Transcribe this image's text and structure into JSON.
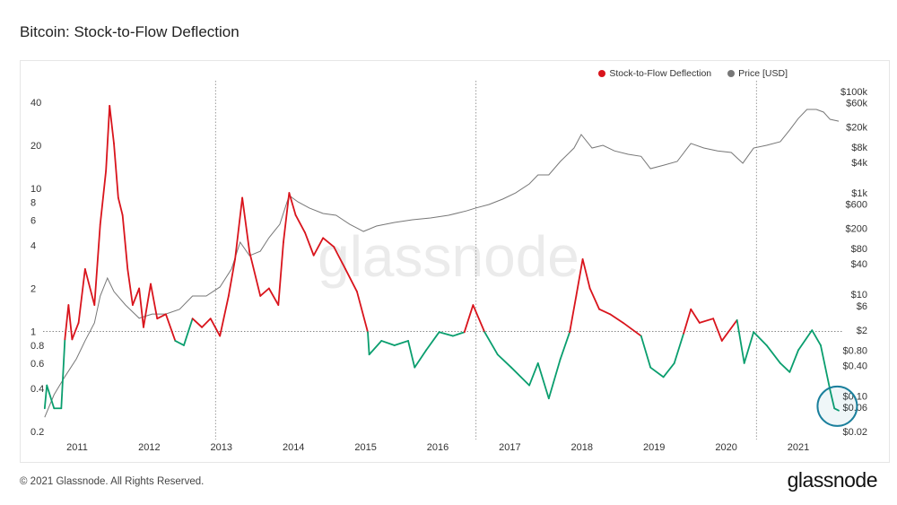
{
  "title": "Bitcoin: Stock-to-Flow Deflection",
  "footer": "© 2021 Glassnode. All Rights Reserved.",
  "brand": "glassnode",
  "watermark": "glassnode",
  "colors": {
    "above_one": "#d9141c",
    "below_one": "#0a9e6e",
    "price": "#777777",
    "annotation": "#1a7f9c"
  },
  "chart_data": {
    "type": "line",
    "title": "Bitcoin: Stock-to-Flow Deflection",
    "legend": {
      "position": "top-right",
      "entries": [
        {
          "name": "Stock-to-Flow Deflection",
          "color": "#d9141c"
        },
        {
          "name": "Price [USD]",
          "color": "#777777"
        }
      ]
    },
    "x_ticks": [
      "2011",
      "2012",
      "2013",
      "2014",
      "2015",
      "2016",
      "2017",
      "2018",
      "2019",
      "2020",
      "2021"
    ],
    "xlim": [
      2010.55,
      2021.6
    ],
    "y_left": {
      "scale": "log",
      "ylim": [
        0.2,
        50
      ],
      "ticks": [
        "40",
        "20",
        "10",
        "8",
        "6",
        "4",
        "2",
        "1",
        "0.8",
        "0.6",
        "0.4",
        "0.2"
      ]
    },
    "y_right": {
      "scale": "log",
      "ylim": [
        0.02,
        100000
      ],
      "ticks": [
        "$100k",
        "$60k",
        "$20k",
        "$8k",
        "$4k",
        "$1k",
        "$600",
        "$200",
        "$80",
        "$40",
        "$10",
        "$6",
        "$2",
        "$0.80",
        "$0.40",
        "$0.10",
        "$0.06",
        "$0.02"
      ]
    },
    "reference_line_y": 1,
    "halving_lines_x": [
      2012.92,
      2016.53,
      2020.42
    ],
    "annotation": {
      "type": "circle",
      "x": 2021.54,
      "y": 0.3
    },
    "grid": false,
    "series": [
      {
        "name": "Stock-to-Flow Deflection",
        "axis": "left",
        "x": [
          2010.55,
          2010.58,
          2010.68,
          2010.78,
          2010.83,
          2010.88,
          2010.93,
          2011.02,
          2011.11,
          2011.24,
          2011.32,
          2011.4,
          2011.45,
          2011.51,
          2011.57,
          2011.63,
          2011.7,
          2011.77,
          2011.86,
          2011.92,
          2012.02,
          2012.11,
          2012.23,
          2012.36,
          2012.48,
          2012.6,
          2012.73,
          2012.85,
          2012.98,
          2013.1,
          2013.19,
          2013.29,
          2013.39,
          2013.54,
          2013.66,
          2013.79,
          2013.86,
          2013.94,
          2014.03,
          2014.16,
          2014.28,
          2014.41,
          2014.56,
          2014.72,
          2014.88,
          2015.03,
          2015.05,
          2015.22,
          2015.4,
          2015.59,
          2015.68,
          2015.84,
          2016.02,
          2016.21,
          2016.37,
          2016.49,
          2016.65,
          2016.83,
          2017.02,
          2017.27,
          2017.39,
          2017.54,
          2017.7,
          2017.83,
          2017.92,
          2018.01,
          2018.11,
          2018.24,
          2018.39,
          2018.57,
          2018.82,
          2018.95,
          2019.13,
          2019.28,
          2019.41,
          2019.51,
          2019.63,
          2019.82,
          2019.94,
          2020.15,
          2020.25,
          2020.38,
          2020.56,
          2020.75,
          2020.88,
          2021.0,
          2021.19,
          2021.31,
          2021.44,
          2021.5,
          2021.56
        ],
        "y": [
          0.29,
          0.42,
          0.29,
          0.29,
          0.88,
          1.53,
          0.88,
          1.15,
          2.73,
          1.53,
          5.6,
          13.3,
          37.8,
          20.6,
          8.6,
          6.5,
          2.73,
          1.53,
          2.0,
          1.07,
          2.15,
          1.23,
          1.32,
          0.86,
          0.8,
          1.23,
          1.07,
          1.23,
          0.93,
          1.77,
          3.2,
          8.6,
          3.6,
          1.77,
          2.0,
          1.53,
          4.2,
          9.3,
          6.5,
          4.9,
          3.4,
          4.5,
          3.9,
          2.73,
          1.9,
          0.99,
          0.69,
          0.86,
          0.8,
          0.86,
          0.56,
          0.74,
          0.99,
          0.93,
          0.99,
          1.53,
          0.99,
          0.69,
          0.56,
          0.42,
          0.6,
          0.34,
          0.64,
          0.99,
          1.77,
          3.2,
          2.0,
          1.43,
          1.32,
          1.15,
          0.93,
          0.56,
          0.48,
          0.6,
          0.97,
          1.43,
          1.15,
          1.23,
          0.86,
          1.2,
          0.6,
          0.99,
          0.8,
          0.6,
          0.52,
          0.74,
          1.02,
          0.8,
          0.39,
          0.29,
          0.28
        ]
      },
      {
        "name": "Price [USD]",
        "axis": "right",
        "x": [
          2010.55,
          2010.68,
          2010.83,
          2010.99,
          2011.11,
          2011.24,
          2011.32,
          2011.42,
          2011.51,
          2011.67,
          2011.86,
          2012.04,
          2012.23,
          2012.42,
          2012.6,
          2012.79,
          2012.98,
          2013.14,
          2013.26,
          2013.39,
          2013.54,
          2013.66,
          2013.81,
          2013.94,
          2014.06,
          2014.22,
          2014.41,
          2014.59,
          2014.78,
          2014.97,
          2015.15,
          2015.4,
          2015.65,
          2015.9,
          2016.15,
          2016.4,
          2016.52,
          2016.71,
          2016.9,
          2017.08,
          2017.27,
          2017.39,
          2017.54,
          2017.7,
          2017.89,
          2017.99,
          2018.14,
          2018.29,
          2018.45,
          2018.64,
          2018.82,
          2018.95,
          2019.13,
          2019.32,
          2019.51,
          2019.69,
          2019.88,
          2020.07,
          2020.23,
          2020.38,
          2020.56,
          2020.75,
          2020.88,
          2021.0,
          2021.12,
          2021.25,
          2021.35,
          2021.44,
          2021.56
        ],
        "y": [
          0.038,
          0.106,
          0.24,
          0.54,
          1.22,
          2.75,
          9.3,
          21,
          11.4,
          6.2,
          3.4,
          4.1,
          4.1,
          5.1,
          9.3,
          9.3,
          14,
          31.6,
          107,
          58,
          71,
          131,
          241,
          887,
          667,
          502,
          393,
          362,
          241,
          174,
          222,
          262,
          296,
          320,
          362,
          443,
          500,
          590,
          753,
          1000,
          1503,
          2260,
          2260,
          4160,
          7650,
          14100,
          7650,
          8650,
          6720,
          5750,
          5250,
          3000,
          3500,
          4160,
          9400,
          7650,
          6720,
          6250,
          3840,
          7650,
          8650,
          10200,
          17300,
          29300,
          44000,
          44000,
          39000,
          28100,
          25800
        ]
      }
    ]
  }
}
